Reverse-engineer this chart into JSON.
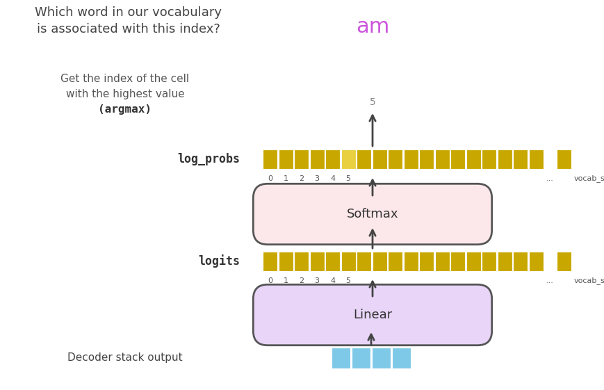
{
  "bg_color": "#ffffff",
  "title_text1": "Which word in our vocabulary",
  "title_text2": "is associated with this index?",
  "argmax_text1": "Get the index of the cell",
  "argmax_text2": "with the highest value",
  "argmax_text3": "(argmax)",
  "am_text": "am",
  "am_color": "#cc55dd",
  "index_value": "5",
  "label_log_probs": "log_probs",
  "label_logits": "logits",
  "label_softmax": "Softmax",
  "label_linear": "Linear",
  "label_decoder": "Decoder stack output",
  "softmax_color": "#fce8ea",
  "softmax_border": "#555555",
  "linear_color": "#e8d5f8",
  "linear_border": "#555555",
  "bar_color_normal": "#c8a800",
  "bar_color_highlight": "#e8d040",
  "bar_color_single": "#c8a800",
  "decoder_bar_color": "#7ec8e8",
  "tick_labels": [
    "0",
    "1",
    "2",
    "3",
    "4",
    "5"
  ],
  "vocab_size_label": "vocab_size",
  "ellipsis": "...",
  "n_cells": 18,
  "n_decoder_cells": 4,
  "highlight_idx": 5,
  "text_color_dark": "#444444",
  "text_color_mid": "#555555"
}
